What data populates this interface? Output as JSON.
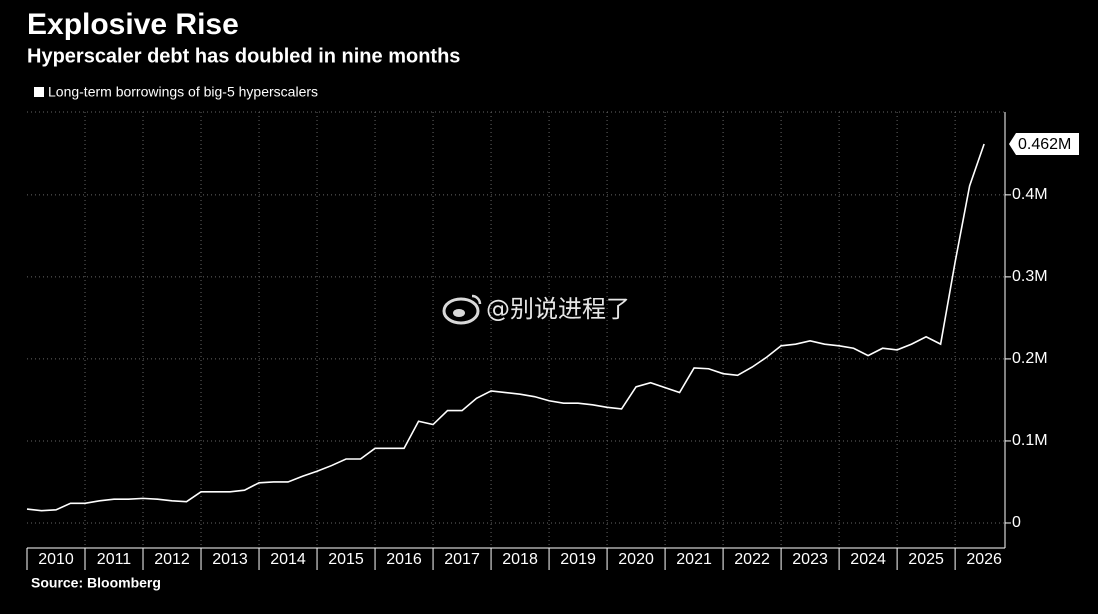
{
  "chart_data": {
    "type": "line",
    "title": "Explosive Rise",
    "subtitle": "Hyperscaler debt has doubled in nine months",
    "source": "Source: Bloomberg",
    "watermark": "@别说进程了",
    "x": [
      2010,
      2010.25,
      2010.5,
      2010.75,
      2011,
      2011.25,
      2011.5,
      2011.75,
      2012,
      2012.25,
      2012.5,
      2012.75,
      2013,
      2013.25,
      2013.5,
      2013.75,
      2014,
      2014.25,
      2014.5,
      2014.75,
      2015,
      2015.25,
      2015.5,
      2015.75,
      2016,
      2016.25,
      2016.5,
      2016.75,
      2017,
      2017.25,
      2017.5,
      2017.75,
      2018,
      2018.25,
      2018.5,
      2018.75,
      2019,
      2019.25,
      2019.5,
      2019.75,
      2020,
      2020.25,
      2020.5,
      2020.75,
      2021,
      2021.25,
      2021.5,
      2021.75,
      2022,
      2022.25,
      2022.5,
      2022.75,
      2023,
      2023.25,
      2023.5,
      2023.75,
      2024,
      2024.25,
      2024.5,
      2024.75,
      2025,
      2025.25,
      2025.5,
      2025.75,
      2026,
      2026.25,
      2026.5
    ],
    "series": [
      {
        "name": "Long-term borrowings of big-5 hyperscalers",
        "color": "#ffffff",
        "values": [
          0.017,
          0.015,
          0.016,
          0.024,
          0.024,
          0.027,
          0.029,
          0.029,
          0.03,
          0.029,
          0.027,
          0.026,
          0.038,
          0.038,
          0.038,
          0.04,
          0.049,
          0.05,
          0.05,
          0.057,
          0.063,
          0.07,
          0.078,
          0.078,
          0.091,
          0.091,
          0.091,
          0.124,
          0.12,
          0.137,
          0.137,
          0.152,
          0.161,
          0.159,
          0.157,
          0.154,
          0.149,
          0.146,
          0.146,
          0.144,
          0.141,
          0.139,
          0.166,
          0.171,
          0.165,
          0.159,
          0.189,
          0.188,
          0.182,
          0.18,
          0.19,
          0.202,
          0.216,
          0.218,
          0.222,
          0.218,
          0.216,
          0.213,
          0.204,
          0.213,
          0.211,
          0.218,
          0.227,
          0.218,
          0.318,
          0.411,
          0.462
        ]
      }
    ],
    "annotations": [
      {
        "x": 2026.5,
        "value": 0.462,
        "label": "0.462M"
      }
    ],
    "xlim": [
      2010,
      2026.86
    ],
    "xticks": [
      {
        "value": 2010,
        "label": "2010"
      },
      {
        "value": 2011,
        "label": "2011"
      },
      {
        "value": 2012,
        "label": "2012"
      },
      {
        "value": 2013,
        "label": "2013"
      },
      {
        "value": 2014,
        "label": "2014"
      },
      {
        "value": 2015,
        "label": "2015"
      },
      {
        "value": 2016,
        "label": "2016"
      },
      {
        "value": 2017,
        "label": "2017"
      },
      {
        "value": 2018,
        "label": "2018"
      },
      {
        "value": 2019,
        "label": "2019"
      },
      {
        "value": 2020,
        "label": "2020"
      },
      {
        "value": 2021,
        "label": "2021"
      },
      {
        "value": 2022,
        "label": "2022"
      },
      {
        "value": 2023,
        "label": "2023"
      },
      {
        "value": 2024,
        "label": "2024"
      },
      {
        "value": 2025,
        "label": "2025"
      },
      {
        "value": 2026,
        "label": "2026"
      }
    ],
    "ylim": [
      -0.0305,
      0.501
    ],
    "yticks": [
      0,
      {
        "value": 0.1,
        "label": "0.1M"
      },
      {
        "value": 0.2,
        "label": "0.2M"
      },
      {
        "value": 0.3,
        "label": "0.3M"
      },
      {
        "value": 0.4,
        "label": "0.4M"
      }
    ],
    "grid": true
  }
}
